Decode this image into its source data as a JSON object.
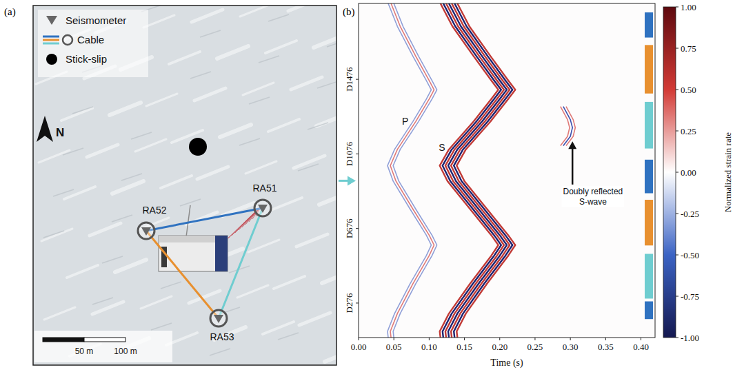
{
  "chart_data": [
    {
      "type": "map",
      "panel": "(a)",
      "legend_items": [
        {
          "label": "Seismometer",
          "marker": "triangle"
        },
        {
          "label": "Cable",
          "marker": "circle"
        },
        {
          "label": "Stick-slip",
          "marker": "dot"
        }
      ],
      "north_label": "N",
      "stations": [
        "RA51",
        "RA52",
        "RA53"
      ],
      "cables": [
        {
          "from": "RA52",
          "to": "RA51",
          "color": "#2f72c0"
        },
        {
          "from": "RA52",
          "to": "RA53",
          "color": "#e8902f"
        },
        {
          "from": "RA53",
          "to": "RA51",
          "color": "#6fcdd0"
        }
      ],
      "scale_bar": {
        "ticks": [
          {
            "value": 50,
            "label": "50 m"
          },
          {
            "value": 100,
            "label": "100 m"
          }
        ]
      }
    },
    {
      "type": "heatmap",
      "panel": "(b)",
      "x_label": "Time (s)",
      "xlim": [
        0,
        0.42
      ],
      "xticks": [
        {
          "value": 0,
          "label": "0.00"
        },
        {
          "value": 0.05,
          "label": "0.05"
        },
        {
          "value": 0.1,
          "label": "0.10"
        },
        {
          "value": 0.15,
          "label": "0.15"
        },
        {
          "value": 0.2,
          "label": "0.20"
        },
        {
          "value": 0.25,
          "label": "0.25"
        },
        {
          "value": 0.3,
          "label": "0.30"
        },
        {
          "value": 0.35,
          "label": "0.35"
        },
        {
          "value": 0.4,
          "label": "0.40"
        }
      ],
      "ylim": [
        91,
        1883
      ],
      "yticks": [
        {
          "value": 276,
          "label": "D276"
        },
        {
          "value": 676,
          "label": "D676"
        },
        {
          "value": 1076,
          "label": "D1076"
        },
        {
          "value": 1476,
          "label": "D1476"
        }
      ],
      "series": [
        {
          "name": "P",
          "label_x": 0.066,
          "label_y": 1250,
          "x": [
            0.046,
            0.059,
            0.081,
            0.1,
            0.107,
            0.1,
            0.081,
            0.055,
            0.045,
            0.053,
            0.077,
            0.1,
            0.107,
            0.1,
            0.077,
            0.055,
            0.045,
            0.046
          ],
          "y": [
            1883,
            1760,
            1600,
            1470,
            1420,
            1370,
            1250,
            1100,
            1013,
            930,
            780,
            640,
            587,
            530,
            380,
            220,
            124,
            91
          ]
        },
        {
          "name": "S",
          "label_x": 0.118,
          "label_y": 1110,
          "x": [
            0.128,
            0.145,
            0.175,
            0.2,
            0.21,
            0.2,
            0.175,
            0.14,
            0.127,
            0.138,
            0.17,
            0.2,
            0.21,
            0.2,
            0.17,
            0.14,
            0.127,
            0.128
          ],
          "y": [
            1883,
            1760,
            1600,
            1470,
            1420,
            1370,
            1250,
            1100,
            1013,
            930,
            780,
            640,
            587,
            530,
            380,
            220,
            124,
            91
          ]
        },
        {
          "name": "Doubly reflected S-wave",
          "label_x": 0.332,
          "label_y": 860,
          "x": [
            0.29,
            0.3,
            0.303,
            0.3,
            0.29
          ],
          "y": [
            1330,
            1260,
            1217,
            1170,
            1120
          ]
        }
      ],
      "segments": [
        {
          "y": [
            1835,
            1700
          ],
          "color": "#2f72c0"
        },
        {
          "y": [
            1660,
            1400
          ],
          "color": "#e8902f"
        },
        {
          "y": [
            1355,
            1105
          ],
          "color": "#6fcdd0"
        },
        {
          "y": [
            1045,
            865
          ],
          "color": "#2f72c0"
        },
        {
          "y": [
            830,
            585
          ],
          "color": "#e8902f"
        },
        {
          "y": [
            540,
            300
          ],
          "color": "#6fcdd0"
        },
        {
          "y": [
            285,
            190
          ],
          "color": "#2f72c0"
        }
      ],
      "arrow": {
        "y": 932,
        "color": "#6fcdd0"
      },
      "colorbar": {
        "label": "Normalized strain rate",
        "range": [
          -1,
          1
        ],
        "ticks": [
          {
            "value": -1,
            "label": "-1.00"
          },
          {
            "value": -0.75,
            "label": "-0.75"
          },
          {
            "value": -0.5,
            "label": "-0.50"
          },
          {
            "value": -0.25,
            "label": "-0.25"
          },
          {
            "value": 0,
            "label": "0.00"
          },
          {
            "value": 0.25,
            "label": "0.25"
          },
          {
            "value": 0.5,
            "label": "0.50"
          },
          {
            "value": 0.75,
            "label": "0.75"
          },
          {
            "value": 1,
            "label": "1.00"
          }
        ]
      }
    }
  ]
}
